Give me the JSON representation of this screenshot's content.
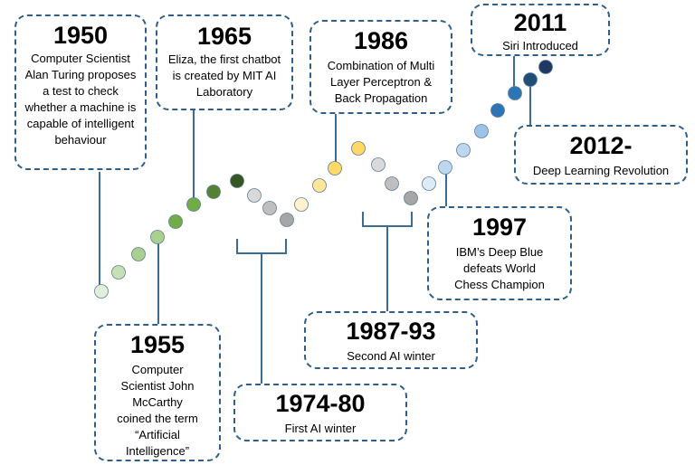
{
  "milestones": [
    {
      "year": "1950",
      "text": "Computer Scientist Alan Turing proposes a test to check whether a machine is capable of intelligent behaviour"
    },
    {
      "year": "1955",
      "text": "Computer Scientist John McCarthy coined the term “Artificial Intelligence”"
    },
    {
      "year": "1965",
      "text": "Eliza, the first chatbot is created by MIT AI Laboratory"
    },
    {
      "year": "1974-80",
      "text": "First AI winter"
    },
    {
      "year": "1986",
      "text": "Combination of Multi Layer Perceptron & Back Propagation"
    },
    {
      "year": "1987-93",
      "text": "Second AI winter"
    },
    {
      "year": "1997",
      "text": "IBM’s Deep Blue defeats World Chess Champion"
    },
    {
      "year": "2011",
      "text": "Siri Introduced"
    },
    {
      "year": "2012-",
      "text": "Deep Learning Revolution"
    }
  ],
  "colors": {
    "box_border": "#2e5f8a",
    "connector": "#3b6c96",
    "dot_stroke": "#5f7f93",
    "dots": [
      "#e2efda",
      "#c6e0b4",
      "#a9d08e",
      "#70ad47",
      "#548235",
      "#3e6b27",
      "#375623",
      "#d9d9d9",
      "#bfbfbf",
      "#a6a6a6",
      "#fff2cc",
      "#ffe699",
      "#ffd966",
      "#d9d9d9",
      "#a6a6a6",
      "#7f7f7f",
      "#ddebf7",
      "#bdd7ee",
      "#9dc3e6",
      "#2e75b6",
      "#1f4e79",
      "#203864"
    ]
  }
}
